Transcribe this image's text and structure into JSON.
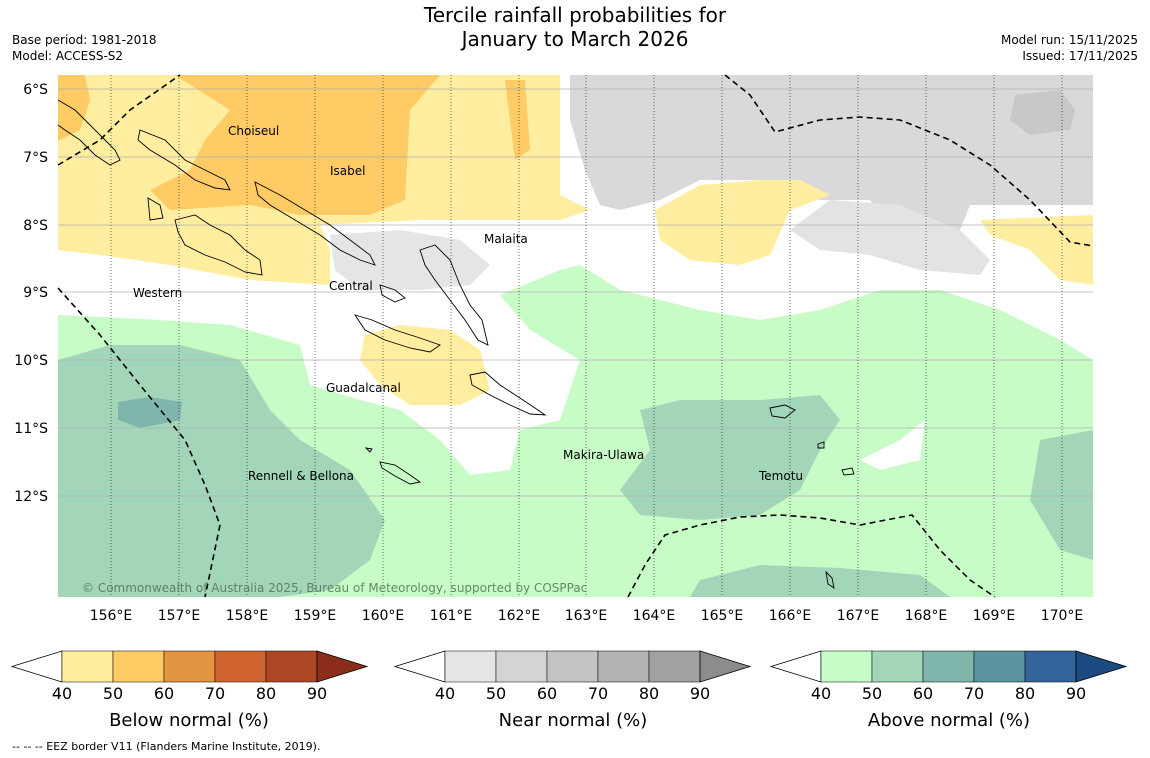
{
  "title_line1": "Tercile rainfall probabilities for",
  "title_line2": "January to March 2026",
  "meta_left": [
    "Base period: 1981-2018",
    "Model: ACCESS-S2"
  ],
  "meta_right": [
    "Model run: 15/11/2025",
    "Issued: 17/11/2025"
  ],
  "map": {
    "lat_labels": [
      "6°S",
      "7°S",
      "8°S",
      "9°S",
      "10°S",
      "11°S",
      "12°S"
    ],
    "lon_labels": [
      "156°E",
      "157°E",
      "158°E",
      "159°E",
      "160°E",
      "161°E",
      "162°E",
      "163°E",
      "164°E",
      "165°E",
      "166°E",
      "167°E",
      "168°E",
      "169°E",
      "170°E"
    ],
    "places": [
      "Choiseul",
      "Isabel",
      "Malaita",
      "Western",
      "Central",
      "Guadalcanal",
      "Makira-Ulawa",
      "Rennell & Bellona",
      "Temotu"
    ],
    "copyright": "© Commonwealth of Australia 2025, Bureau of Meteorology, supported by COSPPac"
  },
  "colorbars": [
    {
      "label": "Below normal (%)",
      "ticks": [
        "40",
        "50",
        "60",
        "70",
        "80",
        "90"
      ],
      "colors": [
        "#ffffff",
        "#ffeda0",
        "#fecb65",
        "#e39544",
        "#cf6431",
        "#ad4726",
        "#8c2d1b"
      ]
    },
    {
      "label": "Near normal (%)",
      "ticks": [
        "40",
        "50",
        "60",
        "70",
        "80",
        "90"
      ],
      "colors": [
        "#ffffff",
        "#e5e5e5",
        "#d4d4d4",
        "#c3c3c3",
        "#b2b2b2",
        "#a1a1a1",
        "#8c8c8c"
      ]
    },
    {
      "label": "Above normal (%)",
      "ticks": [
        "40",
        "50",
        "60",
        "70",
        "80",
        "90"
      ],
      "colors": [
        "#ffffff",
        "#c7fcc7",
        "#a3d6b9",
        "#80b5ac",
        "#5a949f",
        "#33639b",
        "#1b4b80"
      ]
    }
  ],
  "footnote": "-- -- -- EEZ border V11 (Flanders Marine Institute, 2019)."
}
